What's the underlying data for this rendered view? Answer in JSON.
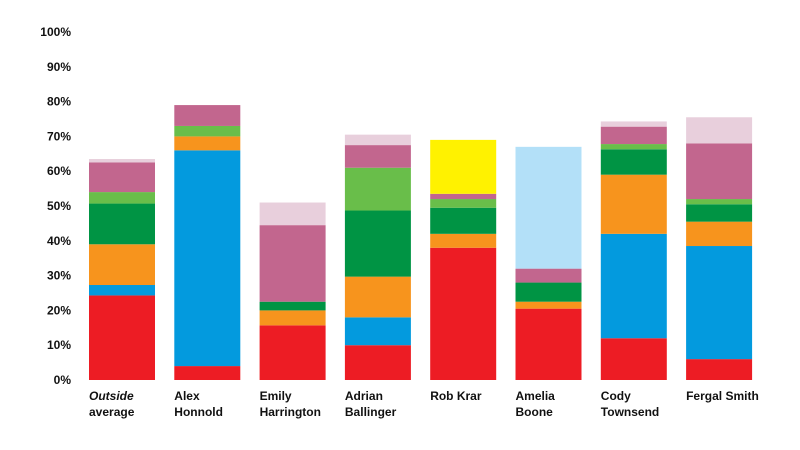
{
  "chart_data": {
    "type": "bar",
    "stacked": true,
    "ylim": [
      0,
      100
    ],
    "yticks": [
      "0%",
      "10%",
      "20%",
      "30%",
      "40%",
      "50%",
      "60%",
      "70%",
      "80%",
      "90%",
      "100%"
    ],
    "grid": false,
    "categories": [
      {
        "lines": [
          "Outside",
          "average"
        ],
        "italic_first_line": true
      },
      {
        "lines": [
          "Alex",
          "Honnold"
        ]
      },
      {
        "lines": [
          "Emily",
          "Harrington"
        ]
      },
      {
        "lines": [
          "Adrian",
          "Ballinger"
        ]
      },
      {
        "lines": [
          "Rob Krar"
        ]
      },
      {
        "lines": [
          "Amelia",
          "Boone"
        ]
      },
      {
        "lines": [
          "Cody",
          "Townsend"
        ]
      },
      {
        "lines": [
          "Fergal Smith"
        ]
      }
    ],
    "series": [
      {
        "color": "#ed1c24",
        "values": [
          24.3,
          4,
          15.7,
          10,
          38,
          20.5,
          12,
          6
        ]
      },
      {
        "color": "#039ade",
        "values": [
          3,
          62,
          0,
          8,
          0,
          0,
          30,
          32.5
        ]
      },
      {
        "color": "#f7941d",
        "values": [
          11.7,
          4,
          4.3,
          11.7,
          4,
          2,
          17,
          7
        ]
      },
      {
        "color": "#009444",
        "values": [
          11.7,
          0,
          2.5,
          19,
          7.5,
          5.5,
          7.3,
          5
        ]
      },
      {
        "color": "#69be4a",
        "values": [
          3.3,
          3,
          0,
          12.3,
          2.5,
          0,
          1.5,
          1.5
        ]
      },
      {
        "color": "#c2668e",
        "values": [
          8.5,
          6,
          22,
          6.5,
          1.5,
          4,
          5,
          16
        ]
      },
      {
        "color": "#fff200",
        "values": [
          0,
          0,
          0,
          0,
          15.5,
          0,
          0,
          0
        ]
      },
      {
        "color": "#b3e0f8",
        "values": [
          0,
          0,
          0,
          0,
          0,
          35,
          0,
          0
        ]
      },
      {
        "color": "#e8cfdc",
        "values": [
          1,
          0,
          6.5,
          3,
          0,
          0,
          1.5,
          7.5
        ]
      }
    ]
  }
}
